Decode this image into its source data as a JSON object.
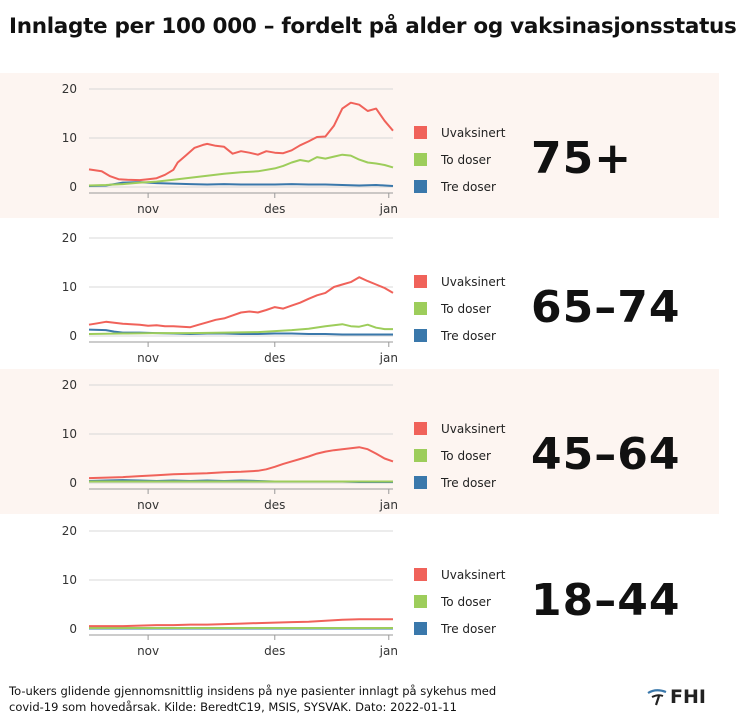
{
  "title": "Innlagte per 100 000 – fordelt på alder og vaksinasjonsstatus",
  "footer": {
    "line1": "To-ukers glidende gjennomsnittlig insidens på nye pasienter innlagt på sykehus med",
    "line2": "covid-19 som hovedårsak. Kilde: BeredtC19, MSIS, SYSVAK. Dato: 2022-01-11"
  },
  "logo": {
    "text": "FHI"
  },
  "colors": {
    "unvaccinated": "#f0625a",
    "two_doses": "#9dcd5b",
    "three_doses": "#3a78ab",
    "panel_bg": "#fdf5f1"
  },
  "chart_data": [
    {
      "type": "line",
      "age_group": "75+",
      "xlabel_ticks": [
        "nov",
        "des",
        "jan"
      ],
      "y_ticks": [
        "0",
        "10",
        "20"
      ],
      "ylim": [
        0,
        20
      ],
      "x_range": [
        0,
        72
      ],
      "x_tick_positions": [
        14,
        44,
        71
      ],
      "x_tick_note": "days since 2021-10-18",
      "series": [
        {
          "name": "Uvaksinert",
          "color": "#f0625a",
          "x": [
            0,
            3,
            5,
            7,
            9,
            12,
            14,
            16,
            18,
            20,
            21,
            23,
            25,
            27,
            28,
            30,
            32,
            34,
            36,
            38,
            40,
            42,
            44,
            46,
            48,
            50,
            52,
            54,
            56,
            58,
            60,
            62,
            64,
            66,
            68,
            70,
            72
          ],
          "y": [
            3.6,
            3.2,
            2.2,
            1.6,
            1.5,
            1.4,
            1.6,
            1.8,
            2.5,
            3.5,
            5.0,
            6.5,
            8.0,
            8.6,
            8.8,
            8.4,
            8.2,
            6.8,
            7.3,
            7.0,
            6.6,
            7.3,
            7.0,
            6.9,
            7.5,
            8.5,
            9.3,
            10.2,
            10.3,
            12.5,
            16.0,
            17.2,
            16.8,
            15.5,
            16.0,
            13.5,
            11.5
          ]
        },
        {
          "name": "To doser",
          "color": "#9dcd5b",
          "x": [
            0,
            4,
            6,
            8,
            12,
            16,
            20,
            24,
            28,
            32,
            36,
            40,
            44,
            46,
            48,
            50,
            52,
            54,
            56,
            58,
            60,
            62,
            64,
            66,
            68,
            70,
            72
          ],
          "y": [
            0.3,
            0.4,
            0.5,
            0.6,
            0.9,
            1.1,
            1.5,
            1.9,
            2.3,
            2.7,
            3.0,
            3.2,
            3.8,
            4.3,
            5.0,
            5.5,
            5.2,
            6.1,
            5.8,
            6.2,
            6.6,
            6.4,
            5.6,
            5.0,
            4.8,
            4.5,
            4.0
          ]
        },
        {
          "name": "Tre doser",
          "color": "#3a78ab",
          "x": [
            0,
            4,
            6,
            8,
            12,
            16,
            20,
            24,
            28,
            32,
            36,
            40,
            44,
            48,
            52,
            56,
            60,
            64,
            68,
            72
          ],
          "y": [
            0.2,
            0.3,
            0.6,
            0.9,
            1.0,
            0.8,
            0.7,
            0.6,
            0.5,
            0.6,
            0.5,
            0.5,
            0.5,
            0.6,
            0.5,
            0.5,
            0.4,
            0.3,
            0.4,
            0.2
          ]
        }
      ]
    },
    {
      "type": "line",
      "age_group": "65–74",
      "xlabel_ticks": [
        "nov",
        "des",
        "jan"
      ],
      "y_ticks": [
        "0",
        "10",
        "20"
      ],
      "ylim": [
        0,
        20
      ],
      "x_range": [
        0,
        72
      ],
      "x_tick_positions": [
        14,
        44,
        71
      ],
      "x_tick_note": "days since 2021-10-18",
      "series": [
        {
          "name": "Uvaksinert",
          "color": "#f0625a",
          "x": [
            0,
            2,
            4,
            6,
            8,
            10,
            12,
            14,
            16,
            18,
            20,
            22,
            24,
            26,
            28,
            30,
            32,
            34,
            36,
            38,
            40,
            42,
            44,
            46,
            48,
            50,
            52,
            54,
            56,
            58,
            60,
            62,
            64,
            66,
            68,
            70,
            72
          ],
          "y": [
            2.3,
            2.6,
            2.9,
            2.7,
            2.5,
            2.4,
            2.3,
            2.1,
            2.2,
            2.0,
            2.0,
            1.9,
            1.8,
            2.3,
            2.8,
            3.3,
            3.6,
            4.2,
            4.8,
            5.0,
            4.8,
            5.3,
            5.9,
            5.6,
            6.2,
            6.8,
            7.6,
            8.3,
            8.8,
            10.0,
            10.5,
            11.0,
            12.0,
            11.2,
            10.5,
            9.8,
            8.8
          ]
        },
        {
          "name": "To doser",
          "color": "#9dcd5b",
          "x": [
            0,
            8,
            16,
            24,
            32,
            40,
            44,
            48,
            52,
            56,
            60,
            62,
            64,
            66,
            68,
            70,
            72
          ],
          "y": [
            0.4,
            0.5,
            0.6,
            0.6,
            0.7,
            0.8,
            1.0,
            1.2,
            1.5,
            2.0,
            2.4,
            2.0,
            1.9,
            2.3,
            1.7,
            1.4,
            1.4
          ]
        },
        {
          "name": "Tre doser",
          "color": "#3a78ab",
          "x": [
            0,
            4,
            6,
            8,
            12,
            16,
            20,
            24,
            28,
            32,
            36,
            40,
            44,
            48,
            52,
            56,
            60,
            64,
            68,
            72
          ],
          "y": [
            1.3,
            1.2,
            0.9,
            0.7,
            0.7,
            0.6,
            0.5,
            0.4,
            0.5,
            0.5,
            0.4,
            0.4,
            0.5,
            0.5,
            0.4,
            0.4,
            0.3,
            0.3,
            0.3,
            0.3
          ]
        }
      ]
    },
    {
      "type": "line",
      "age_group": "45–64",
      "xlabel_ticks": [
        "nov",
        "des",
        "jan"
      ],
      "y_ticks": [
        "0",
        "10",
        "20"
      ],
      "ylim": [
        0,
        20
      ],
      "x_range": [
        0,
        72
      ],
      "x_tick_positions": [
        14,
        44,
        71
      ],
      "x_tick_note": "days since 2021-10-18",
      "series": [
        {
          "name": "Uvaksinert",
          "color": "#f0625a",
          "x": [
            0,
            4,
            8,
            12,
            16,
            20,
            24,
            28,
            32,
            36,
            40,
            42,
            44,
            46,
            48,
            50,
            52,
            54,
            56,
            58,
            60,
            62,
            64,
            66,
            68,
            70,
            72
          ],
          "y": [
            1.0,
            1.1,
            1.2,
            1.4,
            1.6,
            1.8,
            1.9,
            2.0,
            2.2,
            2.3,
            2.5,
            2.8,
            3.3,
            3.9,
            4.4,
            4.9,
            5.4,
            6.0,
            6.4,
            6.7,
            6.9,
            7.1,
            7.3,
            6.9,
            6.0,
            5.0,
            4.4
          ]
        },
        {
          "name": "To doser",
          "color": "#9dcd5b",
          "x": [
            0,
            8,
            16,
            24,
            32,
            40,
            48,
            56,
            64,
            72
          ],
          "y": [
            0.3,
            0.3,
            0.3,
            0.3,
            0.3,
            0.3,
            0.3,
            0.3,
            0.3,
            0.3
          ]
        },
        {
          "name": "Tre doser",
          "color": "#3a78ab",
          "x": [
            0,
            4,
            8,
            12,
            16,
            20,
            24,
            28,
            32,
            36,
            40,
            44,
            48,
            52,
            56,
            60,
            64,
            68,
            72
          ],
          "y": [
            0.4,
            0.5,
            0.6,
            0.5,
            0.4,
            0.5,
            0.4,
            0.5,
            0.4,
            0.5,
            0.4,
            0.3,
            0.3,
            0.3,
            0.3,
            0.3,
            0.2,
            0.2,
            0.2
          ]
        }
      ]
    },
    {
      "type": "line",
      "age_group": "18–44",
      "xlabel_ticks": [
        "nov",
        "des",
        "jan"
      ],
      "y_ticks": [
        "0",
        "10",
        "20"
      ],
      "ylim": [
        0,
        20
      ],
      "x_range": [
        0,
        72
      ],
      "x_tick_positions": [
        14,
        44,
        71
      ],
      "x_tick_note": "days since 2021-10-18",
      "series": [
        {
          "name": "Uvaksinert",
          "color": "#f0625a",
          "x": [
            0,
            4,
            8,
            12,
            16,
            20,
            24,
            28,
            32,
            36,
            40,
            44,
            48,
            52,
            56,
            60,
            64,
            68,
            72
          ],
          "y": [
            0.6,
            0.6,
            0.6,
            0.7,
            0.8,
            0.8,
            0.9,
            0.9,
            1.0,
            1.1,
            1.2,
            1.3,
            1.4,
            1.5,
            1.7,
            1.9,
            2.0,
            2.0,
            2.0
          ]
        },
        {
          "name": "To doser",
          "color": "#9dcd5b",
          "x": [
            0,
            8,
            16,
            24,
            32,
            40,
            48,
            56,
            64,
            72
          ],
          "y": [
            0.2,
            0.2,
            0.2,
            0.2,
            0.2,
            0.2,
            0.2,
            0.2,
            0.2,
            0.2
          ]
        },
        {
          "name": "Tre doser",
          "color": "#3a78ab",
          "x": [
            0,
            8,
            16,
            24,
            32,
            40,
            48,
            56,
            64,
            72
          ],
          "y": [
            0.1,
            0.1,
            0.1,
            0.1,
            0.1,
            0.1,
            0.1,
            0.1,
            0.1,
            0.1
          ]
        }
      ]
    }
  ]
}
